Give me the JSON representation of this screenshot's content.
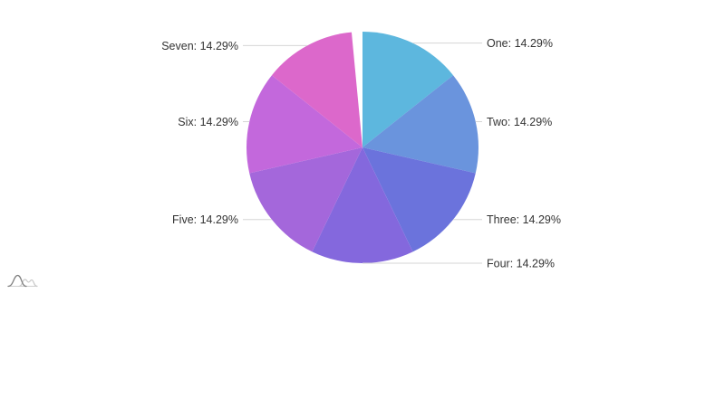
{
  "page": {
    "background": "#ffffff"
  },
  "chart_data": {
    "type": "pie",
    "title": "",
    "categories": [
      "One",
      "Two",
      "Three",
      "Four",
      "Five",
      "Six",
      "Seven"
    ],
    "values": [
      14.29,
      14.29,
      14.29,
      14.29,
      14.29,
      14.29,
      14.29
    ],
    "unit": "%",
    "display_labels": [
      "One: 14.29%",
      "Two: 14.29%",
      "Three: 14.29%",
      "Four: 14.29%",
      "Five: 14.29%",
      "Six: 14.29%",
      "Seven: 14.29%"
    ],
    "slice_colors": [
      "#5db7de",
      "#6a94dd",
      "#6b73dc",
      "#8468dd",
      "#a467db",
      "#c368dc",
      "#dc68cb"
    ],
    "legend": "none",
    "label_style": "outside-with-leader-lines",
    "direction": "clockwise",
    "start_angle_deg": 0,
    "trailing_gap_deg": 5.4,
    "leader_line_color": "#d6d6d6",
    "label_text_color": "#333333"
  },
  "watermark": {
    "icon": "bell-curves-logo",
    "dark_color": "#7f7f7f",
    "light_color": "#c9c9c9",
    "baseline_color": "#cfcfcf"
  }
}
